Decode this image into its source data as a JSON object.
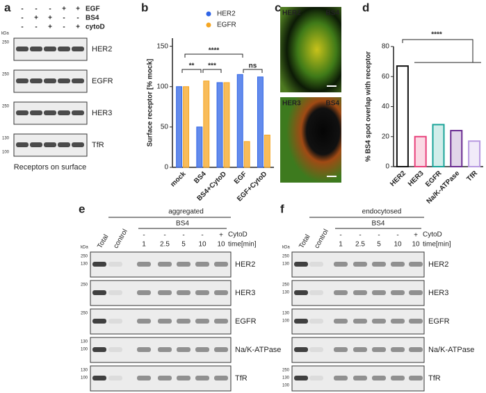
{
  "panel_a": {
    "letter": "a",
    "rows": [
      {
        "label": "EGF",
        "signs": [
          "-",
          "-",
          "-",
          "+",
          "+"
        ]
      },
      {
        "label": "BS4",
        "signs": [
          "-",
          "+",
          "+",
          "-",
          "-"
        ]
      },
      {
        "label": "cytoD",
        "signs": [
          "-",
          "-",
          "+",
          "-",
          "+"
        ]
      }
    ],
    "kda_unit": "kDa",
    "blots": [
      {
        "label": "HER2",
        "markers": [
          250
        ]
      },
      {
        "label": "EGFR",
        "markers": [
          250
        ]
      },
      {
        "label": "HER3",
        "markers": [
          250
        ]
      },
      {
        "label": "TfR",
        "markers": [
          130,
          100
        ]
      }
    ],
    "caption": "Receptors on surface"
  },
  "chart_data": [
    {
      "panel_label": "b",
      "type": "bar",
      "ylabel": "Surface receptor [% mock]",
      "categories": [
        "mock",
        "BS4",
        "BS4+CytoD",
        "EGF",
        "EGF+CytoD"
      ],
      "series": [
        {
          "name": "HER2",
          "color": "#2f64e6",
          "values": [
            100,
            50,
            105,
            115,
            112
          ]
        },
        {
          "name": "EGFR",
          "color": "#f5a623",
          "values": [
            100,
            107,
            105,
            32,
            40
          ]
        }
      ],
      "ylim": [
        0,
        160
      ],
      "yticks": [
        0,
        50,
        100,
        150
      ],
      "legend": "top-right",
      "annotations": [
        "**",
        "***",
        "****",
        "ns"
      ]
    },
    {
      "panel_label": "d",
      "type": "bar",
      "ylabel": "% BS4 spot overlap with receptor",
      "categories": [
        "HER2",
        "HER3",
        "EGFR",
        "Na/K-ATPase",
        "TfR"
      ],
      "values": [
        67,
        20,
        28,
        24,
        17
      ],
      "colors": [
        "#111111",
        "#e8407a",
        "#19a398",
        "#6a2c91",
        "#b799e0"
      ],
      "ylim": [
        0,
        80
      ],
      "yticks": [
        0,
        20,
        40,
        60,
        80
      ],
      "annotations": [
        "****"
      ]
    }
  ],
  "panel_c": {
    "letter": "c",
    "images": [
      {
        "labels": [
          "HER2",
          "BS4"
        ]
      },
      {
        "labels": [
          "HER3",
          "BS4"
        ]
      }
    ]
  },
  "panel_e": {
    "letter": "e",
    "group": "aggregated",
    "treatment": "BS4",
    "lanes": [
      "Total",
      "control",
      "1",
      "2.5",
      "5",
      "10",
      "10"
    ],
    "cytod": [
      "-",
      "-",
      "-",
      "-",
      "+"
    ],
    "cytod_label": "CytoD",
    "time_label": "time[min]",
    "kda_unit": "kDa",
    "blots": [
      {
        "label": "HER2",
        "markers": [
          250,
          130
        ]
      },
      {
        "label": "HER3",
        "markers": [
          250
        ]
      },
      {
        "label": "EGFR",
        "markers": [
          250
        ]
      },
      {
        "label": "Na/K-ATPase",
        "markers": [
          130,
          100
        ]
      },
      {
        "label": "TfR",
        "markers": [
          130,
          100
        ]
      }
    ]
  },
  "panel_f": {
    "letter": "f",
    "group": "endocytosed",
    "treatment": "BS4",
    "lanes": [
      "Total",
      "control",
      "1",
      "2.5",
      "5",
      "10",
      "10"
    ],
    "cytod": [
      "-",
      "-",
      "-",
      "-",
      "+"
    ],
    "cytod_label": "CytoD",
    "time_label": "time[min]",
    "kda_unit": "kDa",
    "blots": [
      {
        "label": "HER2",
        "markers": [
          250,
          130
        ]
      },
      {
        "label": "HER3",
        "markers": [
          250,
          130
        ]
      },
      {
        "label": "EGFR",
        "markers": [
          130,
          100
        ]
      },
      {
        "label": "Na/K-ATPase",
        "markers": []
      },
      {
        "label": "TfR",
        "markers": [
          250,
          130,
          100
        ]
      }
    ]
  }
}
